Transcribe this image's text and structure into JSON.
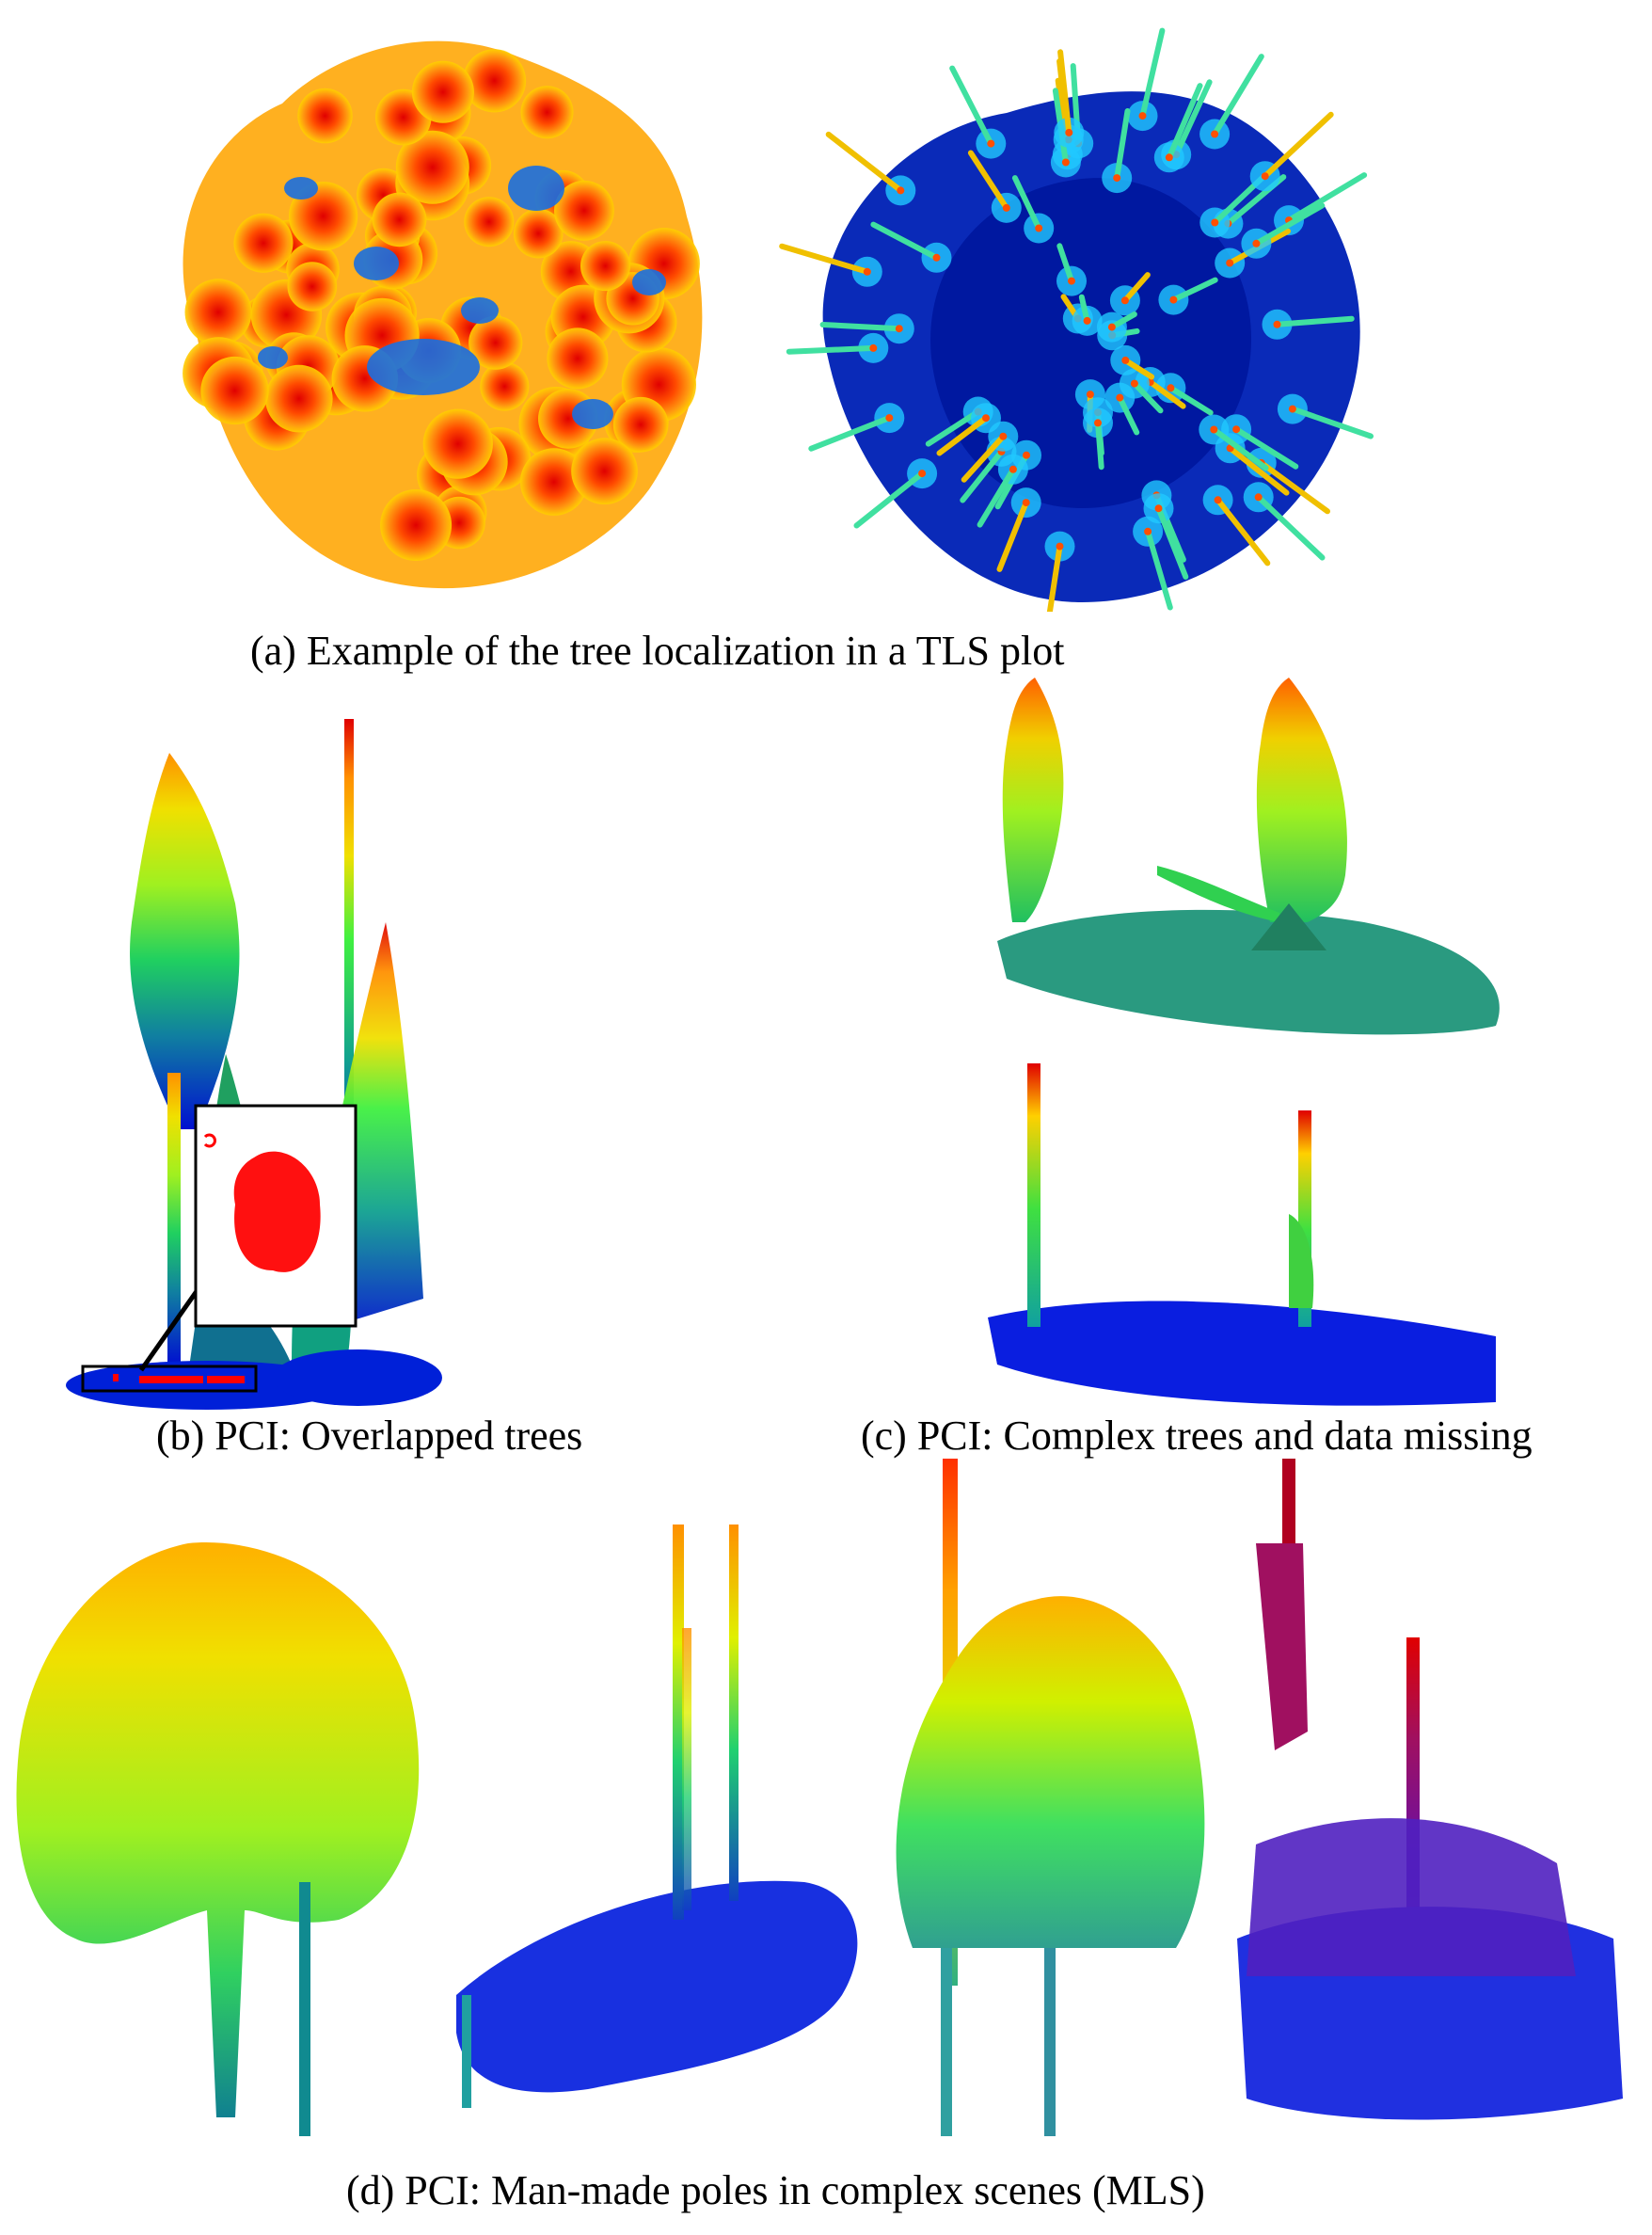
{
  "figure": {
    "captions": {
      "a": "(a) Example of the tree localization in a TLS plot",
      "b": "(b) PCI: Overlapped trees",
      "c": "(c) PCI: Complex trees and data missing",
      "d": "(d) PCI:  Man-made poles in complex scenes (MLS)"
    },
    "colormap": [
      "#0000c8",
      "#0050ff",
      "#00c8ff",
      "#30e080",
      "#a0f020",
      "#f0e000",
      "#ff9000",
      "#ff3000",
      "#e00000"
    ],
    "highlight_color": "#ff0000"
  }
}
